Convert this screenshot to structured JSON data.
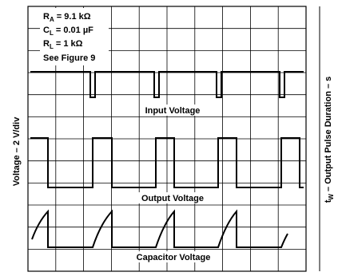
{
  "conditions": [
    {
      "symbol": "R",
      "sub": "A",
      "rest": " = 9.1 kΩ"
    },
    {
      "symbol": "C",
      "sub": "L",
      "rest": " = 0.01 µF"
    },
    {
      "symbol": "R",
      "sub": "L",
      "rest": " = 1 kΩ"
    }
  ],
  "see_figure": "See Figure 9",
  "traces": {
    "input": "Input Voltage",
    "output": "Output Voltage",
    "capacitor": "Capacitor Voltage"
  },
  "y_axis_label": "Voltage – 2 V/div",
  "right_label": {
    "symbol": "t",
    "sub": "W",
    "rest": " – Output Pulse Duration – s"
  }
}
